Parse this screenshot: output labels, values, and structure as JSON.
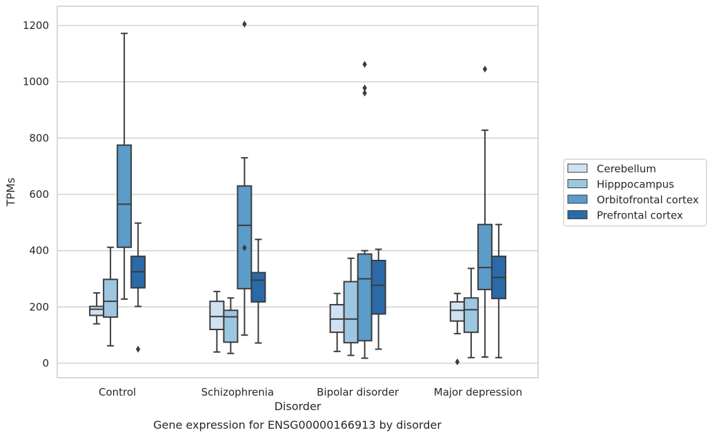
{
  "chart_data": {
    "type": "boxplot",
    "title": "",
    "caption": "Gene expression for ENSG00000166913 by disorder",
    "xlabel": "Disorder",
    "ylabel": "TPMs",
    "ylim": [
      -50,
      1270
    ],
    "yticks": [
      0,
      200,
      400,
      600,
      800,
      1000,
      1200
    ],
    "grid": "horizontal",
    "legend_position": "right",
    "categories": [
      "Control",
      "Schizophrenia",
      "Bipolar disorder",
      "Major depression"
    ],
    "series": [
      {
        "name": "Cerebellum",
        "color": "#d0e1f1",
        "boxes": [
          {
            "whislo": 140,
            "q1": 170,
            "med": 192,
            "q3": 202,
            "whishi": 250,
            "fliers": []
          },
          {
            "whislo": 40,
            "q1": 120,
            "med": 166,
            "q3": 220,
            "whishi": 255,
            "fliers": []
          },
          {
            "whislo": 42,
            "q1": 110,
            "med": 157,
            "q3": 208,
            "whishi": 248,
            "fliers": []
          },
          {
            "whislo": 105,
            "q1": 150,
            "med": 188,
            "q3": 218,
            "whishi": 248,
            "fliers": [
              5
            ]
          }
        ]
      },
      {
        "name": "Hipppocampus",
        "color": "#9dc6e0",
        "boxes": [
          {
            "whislo": 62,
            "q1": 164,
            "med": 220,
            "q3": 298,
            "whishi": 412,
            "fliers": []
          },
          {
            "whislo": 35,
            "q1": 75,
            "med": 165,
            "q3": 188,
            "whishi": 232,
            "fliers": []
          },
          {
            "whislo": 28,
            "q1": 73,
            "med": 157,
            "q3": 290,
            "whishi": 373,
            "fliers": []
          },
          {
            "whislo": 20,
            "q1": 110,
            "med": 190,
            "q3": 232,
            "whishi": 337,
            "fliers": []
          }
        ]
      },
      {
        "name": "Orbitofrontal cortex",
        "color": "#5b9cc8",
        "boxes": [
          {
            "whislo": 228,
            "q1": 412,
            "med": 565,
            "q3": 775,
            "whishi": 1172,
            "fliers": []
          },
          {
            "whislo": 100,
            "q1": 265,
            "med": 490,
            "q3": 630,
            "whishi": 730,
            "fliers": [
              410,
              1205
            ]
          },
          {
            "whislo": 18,
            "q1": 80,
            "med": 300,
            "q3": 388,
            "whishi": 400,
            "fliers": [
              960,
              978,
              1062
            ]
          },
          {
            "whislo": 22,
            "q1": 262,
            "med": 340,
            "q3": 493,
            "whishi": 828,
            "fliers": [
              1045
            ]
          }
        ]
      },
      {
        "name": "Prefrontal cortex",
        "color": "#2a6aa8",
        "boxes": [
          {
            "whislo": 202,
            "q1": 268,
            "med": 325,
            "q3": 380,
            "whishi": 498,
            "fliers": [
              50
            ]
          },
          {
            "whislo": 72,
            "q1": 218,
            "med": 295,
            "q3": 322,
            "whishi": 440,
            "fliers": []
          },
          {
            "whislo": 50,
            "q1": 175,
            "med": 277,
            "q3": 365,
            "whishi": 405,
            "fliers": []
          },
          {
            "whislo": 20,
            "q1": 230,
            "med": 305,
            "q3": 380,
            "whishi": 493,
            "fliers": []
          }
        ]
      }
    ]
  }
}
